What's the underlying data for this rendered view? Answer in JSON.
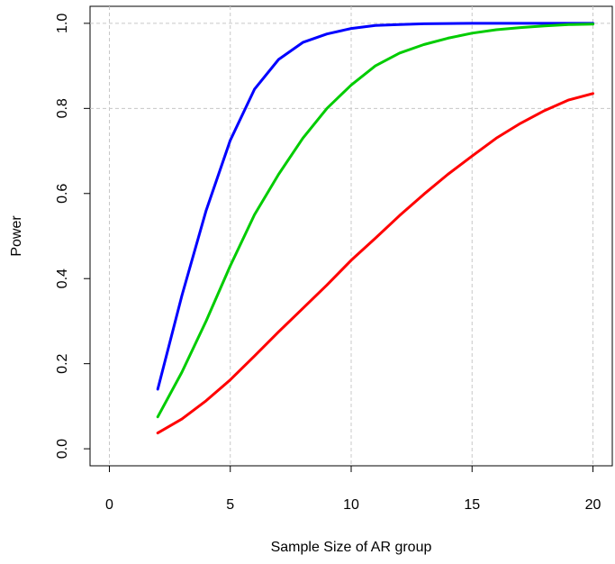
{
  "chart_data": {
    "type": "line",
    "title": "",
    "xlabel": "Sample Size of AR group",
    "ylabel": "Power",
    "xlim": [
      -0.8,
      20.8
    ],
    "ylim": [
      -0.04,
      1.04
    ],
    "x_ticks": [
      0,
      5,
      10,
      15,
      20
    ],
    "x_tick_labels": [
      "0",
      "5",
      "10",
      "15",
      "20"
    ],
    "y_ticks": [
      0.0,
      0.2,
      0.4,
      0.6,
      0.8,
      1.0
    ],
    "y_tick_labels": [
      "0.0",
      "0.2",
      "0.4",
      "0.6",
      "0.8",
      "1.0"
    ],
    "grid": true,
    "grid_lines_x": [
      0,
      5,
      10,
      15,
      20
    ],
    "grid_lines_y": [
      0.8,
      1.0
    ],
    "x": [
      2,
      3,
      4,
      5,
      6,
      7,
      8,
      9,
      10,
      11,
      12,
      13,
      14,
      15,
      16,
      17,
      18,
      19,
      20
    ],
    "series": [
      {
        "color": "#0000ff",
        "values": [
          0.14,
          0.36,
          0.56,
          0.725,
          0.845,
          0.915,
          0.955,
          0.975,
          0.988,
          0.995,
          0.997,
          0.999,
          0.9995,
          1.0,
          1.0,
          1.0,
          1.0,
          1.0,
          1.0
        ]
      },
      {
        "color": "#00cc00",
        "values": [
          0.075,
          0.18,
          0.3,
          0.43,
          0.55,
          0.645,
          0.73,
          0.8,
          0.855,
          0.9,
          0.93,
          0.95,
          0.965,
          0.977,
          0.985,
          0.99,
          0.994,
          0.997,
          0.998
        ]
      },
      {
        "color": "#ff0000",
        "values": [
          0.037,
          0.07,
          0.113,
          0.162,
          0.218,
          0.275,
          0.33,
          0.385,
          0.443,
          0.495,
          0.548,
          0.598,
          0.645,
          0.688,
          0.73,
          0.765,
          0.795,
          0.82,
          0.835
        ]
      }
    ]
  }
}
